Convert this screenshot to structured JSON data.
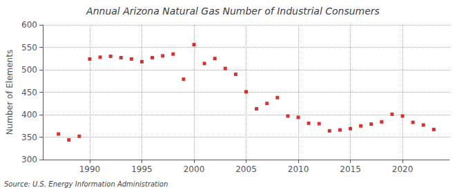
{
  "chart_data": {
    "type": "scatter",
    "title": "Annual Arizona Natural Gas Number of Industrial Consumers",
    "ylabel": "Number of Elements",
    "source": "Source: U.S. Energy Information Administration",
    "x": [
      1987,
      1988,
      1989,
      1990,
      1991,
      1992,
      1993,
      1994,
      1995,
      1996,
      1997,
      1998,
      1999,
      2000,
      2001,
      2002,
      2003,
      2004,
      2005,
      2006,
      2007,
      2008,
      2009,
      2010,
      2011,
      2012,
      2013,
      2014,
      2015,
      2016,
      2017,
      2018,
      2019,
      2020,
      2021,
      2022,
      2023
    ],
    "values": [
      357,
      344,
      352,
      524,
      528,
      530,
      527,
      524,
      518,
      527,
      531,
      535,
      479,
      556,
      514,
      525,
      503,
      490,
      451,
      413,
      425,
      438,
      397,
      394,
      381,
      380,
      364,
      366,
      369,
      375,
      379,
      384,
      401,
      397,
      383,
      377,
      367
    ],
    "color": "#cc0000",
    "marker": "square",
    "xlim": [
      1985.5,
      2024.5
    ],
    "xticks": [
      1990,
      1995,
      2000,
      2005,
      2010,
      2015,
      2020
    ],
    "ylim": [
      300,
      600
    ],
    "yticks": [
      300,
      350,
      400,
      450,
      500,
      550,
      600
    ],
    "grid": true
  }
}
